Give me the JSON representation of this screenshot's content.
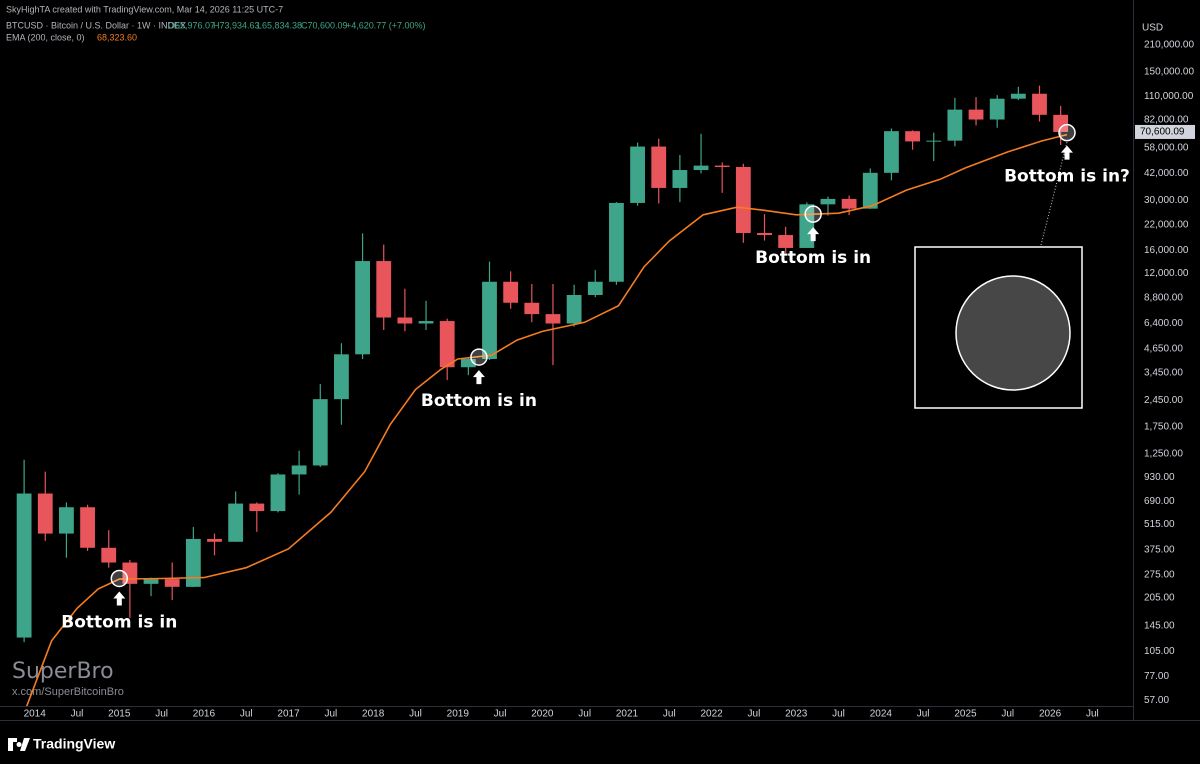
{
  "header": {
    "author_line": "SkyHighTA created with TradingView.com, Mar 14, 2026 11:25 UTC-7",
    "symbol": "BTCUSD · Bitcoin / U.S. Dollar · 1W · INDEX",
    "open": "O65,976.07",
    "high": "H73,934.63",
    "low": "L65,834.38",
    "close": "C70,600.09",
    "change": "+4,620.77 (+7.00%)"
  },
  "watermark": {
    "brand": "SuperBro",
    "handle": "x.com/SuperBitcoinBro"
  },
  "footer": {
    "logo": "TradingView"
  },
  "chart_data": {
    "type": "candlestick",
    "log_scale": true,
    "grid": false,
    "currency": "USD",
    "xlim": [
      2013.59,
      2026.98
    ],
    "ylim": [
      53,
      369000
    ],
    "xticks": [
      {
        "value": 2014,
        "label": "2014"
      },
      {
        "value": 2014.5,
        "label": "Jul"
      },
      {
        "value": 2015,
        "label": "2015"
      },
      {
        "value": 2015.5,
        "label": "Jul"
      },
      {
        "value": 2016,
        "label": "2016"
      },
      {
        "value": 2016.5,
        "label": "Jul"
      },
      {
        "value": 2017,
        "label": "2017"
      },
      {
        "value": 2017.5,
        "label": "Jul"
      },
      {
        "value": 2018,
        "label": "2018"
      },
      {
        "value": 2018.5,
        "label": "Jul"
      },
      {
        "value": 2019,
        "label": "2019"
      },
      {
        "value": 2019.5,
        "label": "Jul"
      },
      {
        "value": 2020,
        "label": "2020"
      },
      {
        "value": 2020.5,
        "label": "Jul"
      },
      {
        "value": 2021,
        "label": "2021"
      },
      {
        "value": 2021.5,
        "label": "Jul"
      },
      {
        "value": 2022,
        "label": "2022"
      },
      {
        "value": 2022.5,
        "label": "Jul"
      },
      {
        "value": 2023,
        "label": "2023"
      },
      {
        "value": 2023.5,
        "label": "Jul"
      },
      {
        "value": 2024,
        "label": "2024"
      },
      {
        "value": 2024.5,
        "label": "Jul"
      },
      {
        "value": 2025,
        "label": "2025"
      },
      {
        "value": 2025.5,
        "label": "Jul"
      },
      {
        "value": 2026,
        "label": "2026"
      },
      {
        "value": 2026.5,
        "label": "Jul"
      }
    ],
    "yticks": [
      {
        "value": 210000,
        "label": "210,000.00"
      },
      {
        "value": 150000,
        "label": "150,000.00"
      },
      {
        "value": 110000,
        "label": "110,000.00"
      },
      {
        "value": 82000,
        "label": "82,000.00"
      },
      {
        "value": 58000,
        "label": "58,000.00"
      },
      {
        "value": 42000,
        "label": "42,000.00"
      },
      {
        "value": 30000,
        "label": "30,000.00"
      },
      {
        "value": 22000,
        "label": "22,000.00"
      },
      {
        "value": 16000,
        "label": "16,000.00"
      },
      {
        "value": 12000,
        "label": "12,000.00"
      },
      {
        "value": 8800,
        "label": "8,800.00"
      },
      {
        "value": 6400,
        "label": "6,400.00"
      },
      {
        "value": 4650,
        "label": "4,650.00"
      },
      {
        "value": 3450,
        "label": "3,450.00"
      },
      {
        "value": 2450,
        "label": "2,450.00"
      },
      {
        "value": 1750,
        "label": "1,750.00"
      },
      {
        "value": 1250,
        "label": "1,250.00"
      },
      {
        "value": 930,
        "label": "930.00"
      },
      {
        "value": 690,
        "label": "690.00"
      },
      {
        "value": 515,
        "label": "515.00"
      },
      {
        "value": 375,
        "label": "375.00"
      },
      {
        "value": 275,
        "label": "275.00"
      },
      {
        "value": 205,
        "label": "205.00"
      },
      {
        "value": 145,
        "label": "145.00"
      },
      {
        "value": 105,
        "label": "105.00"
      },
      {
        "value": 77,
        "label": "77.00"
      },
      {
        "value": 57,
        "label": "57.00"
      }
    ],
    "last_price": {
      "value": 70600.09,
      "label": "70,600.09"
    },
    "candles": {
      "up_color": "#3fa58a",
      "down_color": "#e8555a",
      "x": [
        2013.875,
        2014.125,
        2014.375,
        2014.625,
        2014.875,
        2015.125,
        2015.375,
        2015.625,
        2015.875,
        2016.125,
        2016.375,
        2016.625,
        2016.875,
        2017.125,
        2017.375,
        2017.625,
        2017.875,
        2018.125,
        2018.375,
        2018.625,
        2018.875,
        2019.125,
        2019.375,
        2019.625,
        2019.875,
        2020.125,
        2020.375,
        2020.625,
        2020.875,
        2021.125,
        2021.375,
        2021.625,
        2021.875,
        2022.125,
        2022.375,
        2022.625,
        2022.875,
        2023.125,
        2023.375,
        2023.625,
        2023.875,
        2024.125,
        2024.375,
        2024.625,
        2024.875,
        2025.125,
        2025.375,
        2025.625,
        2025.875,
        2026.125
      ],
      "open": [
        125,
        760,
        460,
        640,
        385,
        320,
        245,
        260,
        236,
        430,
        415,
        670,
        610,
        965,
        1080,
        2480,
        4350,
        14000,
        6900,
        6400,
        6600,
        3700,
        4100,
        10800,
        8300,
        7200,
        6400,
        9150,
        10800,
        29000,
        58800,
        35000,
        43800,
        46300,
        45500,
        19900,
        19400,
        16500,
        28500,
        30500,
        27000,
        42300,
        71300,
        62700,
        63300,
        93400,
        82500,
        107100,
        114000,
        87500
      ],
      "high": [
        1160,
        1000,
        680,
        660,
        480,
        330,
        265,
        320,
        500,
        460,
        780,
        680,
        980,
        1300,
        3000,
        5000,
        19800,
        17200,
        9900,
        8500,
        6800,
        4200,
        13900,
        12300,
        10500,
        10500,
        10400,
        12500,
        29300,
        61800,
        64900,
        52900,
        69000,
        48200,
        47400,
        25200,
        21500,
        29200,
        31400,
        31800,
        44700,
        73800,
        72000,
        70000,
        108300,
        109300,
        112000,
        124400,
        126200,
        97900
      ],
      "low": [
        118,
        420,
        340,
        370,
        300,
        160,
        210,
        200,
        235,
        350,
        415,
        470,
        600,
        750,
        1060,
        1800,
        4100,
        5900,
        5800,
        5900,
        3150,
        3350,
        4050,
        7700,
        6500,
        3800,
        6150,
        8900,
        10400,
        28000,
        28800,
        29300,
        42000,
        32900,
        17600,
        18100,
        15500,
        16500,
        24750,
        24900,
        26900,
        38500,
        56500,
        49000,
        58900,
        76600,
        74400,
        105300,
        80500,
        60000
      ],
      "close": [
        760,
        460,
        640,
        385,
        320,
        245,
        260,
        236,
        430,
        415,
        670,
        610,
        965,
        1080,
        2480,
        4350,
        14000,
        6900,
        6400,
        6600,
        3700,
        4100,
        10800,
        8300,
        7200,
        6400,
        9150,
        10800,
        29000,
        58800,
        35000,
        43800,
        46300,
        45500,
        19900,
        19400,
        16500,
        28500,
        30500,
        27000,
        42300,
        71300,
        62700,
        63300,
        93400,
        82500,
        107100,
        114000,
        87500,
        70600
      ]
    },
    "ema": {
      "label": "EMA (200, close, 0)",
      "value_label": "68,323.60",
      "color": "#f57c20",
      "x": [
        2013.9,
        2014.2,
        2014.5,
        2014.75,
        2015.0,
        2015.5,
        2016.0,
        2016.5,
        2017.0,
        2017.5,
        2017.9,
        2018.2,
        2018.5,
        2018.8,
        2019.0,
        2019.4,
        2019.7,
        2020.0,
        2020.5,
        2020.9,
        2021.2,
        2021.5,
        2021.9,
        2022.3,
        2022.6,
        2023.0,
        2023.5,
        2023.9,
        2024.3,
        2024.7,
        2025.0,
        2025.5,
        2025.9,
        2026.2
      ],
      "values": [
        52,
        120,
        180,
        230,
        260,
        262,
        265,
        300,
        380,
        600,
        1000,
        1800,
        2800,
        3600,
        4100,
        4300,
        5200,
        5800,
        6500,
        8000,
        13000,
        18000,
        25000,
        27500,
        26500,
        25000,
        25500,
        28000,
        34000,
        39000,
        45000,
        55000,
        63000,
        68300
      ]
    },
    "annotations": [
      {
        "text": "Bottom is in",
        "x": 2015.0,
        "y": 262
      },
      {
        "text": "Bottom is in",
        "x": 2019.25,
        "y": 4200
      },
      {
        "text": "Bottom is in",
        "x": 2023.2,
        "y": 25200
      },
      {
        "text": "Bottom is in?",
        "x": 2026.2,
        "y": 70000
      }
    ]
  }
}
